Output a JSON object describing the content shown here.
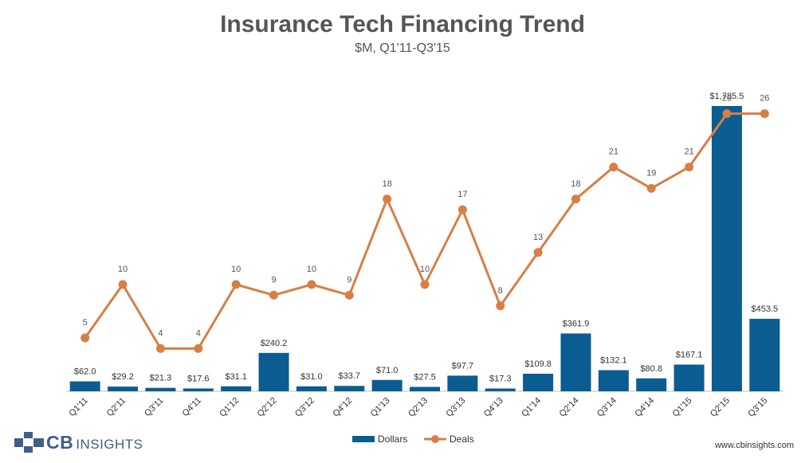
{
  "chart_data": {
    "type": "bar",
    "title": "Insurance Tech Financing Trend",
    "subtitle": "$M, Q1'11-Q3'15",
    "categories": [
      "Q1'11",
      "Q2'11",
      "Q3'11",
      "Q4'11",
      "Q1'12",
      "Q2'12",
      "Q3'12",
      "Q4'12",
      "Q1'13",
      "Q2'13",
      "Q3'13",
      "Q4'13",
      "Q1'14",
      "Q2'14",
      "Q3'14",
      "Q4'14",
      "Q1'15",
      "Q2'15",
      "Q3'15"
    ],
    "series": [
      {
        "name": "Dollars",
        "type": "bar",
        "color": "#0b5d91",
        "values": [
          62.0,
          29.2,
          21.3,
          17.6,
          31.1,
          240.2,
          31.0,
          33.7,
          71.0,
          27.5,
          97.7,
          17.3,
          109.8,
          361.9,
          132.1,
          80.8,
          167.1,
          1785.5,
          453.5
        ],
        "labels": [
          "$62.0",
          "$29.2",
          "$21.3",
          "$17.6",
          "$31.1",
          "$240.2",
          "$31.0",
          "$33.7",
          "$71.0",
          "$27.5",
          "$97.7",
          "$17.3",
          "$109.8",
          "$361.9",
          "$132.1",
          "$80.8",
          "$167.1",
          "$1,785.5",
          "$453.5"
        ]
      },
      {
        "name": "Deals",
        "type": "line",
        "color": "#d77f45",
        "values": [
          5,
          10,
          4,
          4,
          10,
          9,
          10,
          9,
          18,
          10,
          17,
          8,
          13,
          18,
          21,
          19,
          21,
          26,
          26
        ],
        "labels": [
          "5",
          "10",
          "4",
          "4",
          "10",
          "9",
          "10",
          "9",
          "18",
          "10",
          "17",
          "8",
          "13",
          "18",
          "21",
          "19",
          "21",
          "26",
          "26"
        ]
      }
    ],
    "legend": "bottom-center",
    "grid": false
  },
  "brand": {
    "logo_cb": "CB",
    "logo_insights": "INSIGHTS",
    "website": "www.cbinsights.com"
  }
}
